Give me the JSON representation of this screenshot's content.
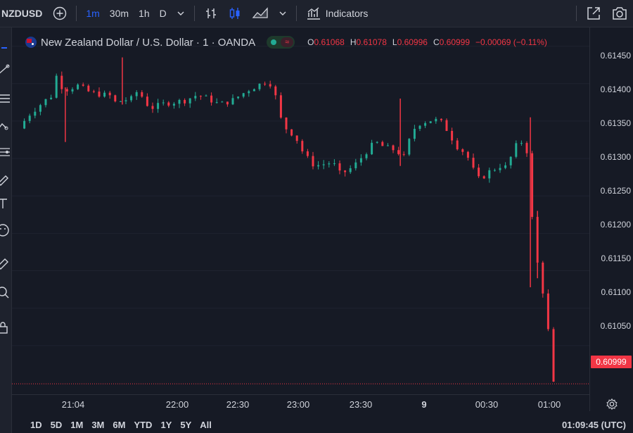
{
  "toolbar": {
    "symbol": "NZDUSD",
    "intervals": [
      "1m",
      "30m",
      "1h",
      "D"
    ],
    "active_interval": "1m",
    "indicators_label": "Indicators",
    "accent_color": "#2962ff"
  },
  "legend": {
    "title": "New Zealand Dollar / U.S. Dollar · 1 · OANDA",
    "ohlc": {
      "open_label": "O",
      "open": "0.61068",
      "high_label": "H",
      "high": "0.61078",
      "low_label": "L",
      "low": "0.60996",
      "close_label": "C",
      "close": "0.60999",
      "change": "−0.00069 (−0.11%)"
    }
  },
  "price_axis": {
    "labels": [
      "0.61450",
      "0.61400",
      "0.61350",
      "0.61300",
      "0.61250",
      "0.61200",
      "0.61150",
      "0.61100",
      "0.61050"
    ],
    "last_price": "0.60999"
  },
  "time_axis": {
    "labels": [
      "21:04",
      "22:00",
      "22:30",
      "23:00",
      "23:30",
      "9",
      "00:30",
      "01:00"
    ]
  },
  "bottom_bar": {
    "ranges": [
      "1D",
      "5D",
      "1M",
      "3M",
      "6M",
      "YTD",
      "1Y",
      "5Y",
      "All"
    ],
    "clock": "01:09:45 (UTC)"
  },
  "chart_data": {
    "type": "candlestick",
    "up_color": "#22ab94",
    "down_color": "#f23645",
    "ylim": [
      0.60985,
      0.61475
    ],
    "close_path": [
      [
        0,
        0.6134
      ],
      [
        10,
        0.61357
      ],
      [
        20,
        0.61368
      ],
      [
        30,
        0.61378
      ],
      [
        38,
        0.61385
      ],
      [
        42,
        0.6141
      ],
      [
        45,
        0.61398
      ],
      [
        55,
        0.61392
      ],
      [
        65,
        0.61398
      ],
      [
        80,
        0.61388
      ],
      [
        95,
        0.61385
      ],
      [
        105,
        0.61383
      ],
      [
        108,
        0.61375
      ],
      [
        118,
        0.61378
      ],
      [
        128,
        0.6138
      ],
      [
        135,
        0.61395
      ],
      [
        140,
        0.61375
      ],
      [
        150,
        0.61368
      ],
      [
        165,
        0.61374
      ],
      [
        185,
        0.61377
      ],
      [
        200,
        0.61385
      ],
      [
        212,
        0.6138
      ],
      [
        225,
        0.61372
      ],
      [
        240,
        0.61378
      ],
      [
        258,
        0.61392
      ],
      [
        272,
        0.614
      ],
      [
        280,
        0.61405
      ],
      [
        287,
        0.61388
      ],
      [
        293,
        0.61355
      ],
      [
        300,
        0.6134
      ],
      [
        310,
        0.6133
      ],
      [
        320,
        0.61305
      ],
      [
        332,
        0.6129
      ],
      [
        340,
        0.61292
      ],
      [
        352,
        0.61295
      ],
      [
        360,
        0.6128
      ],
      [
        368,
        0.61283
      ],
      [
        376,
        0.6129
      ],
      [
        382,
        0.61298
      ],
      [
        392,
        0.61312
      ],
      [
        400,
        0.61322
      ],
      [
        410,
        0.61315
      ],
      [
        420,
        0.61312
      ],
      [
        426,
        0.61308
      ],
      [
        432,
        0.61302
      ],
      [
        437,
        0.6132
      ],
      [
        442,
        0.61338
      ],
      [
        450,
        0.61347
      ],
      [
        458,
        0.6135
      ],
      [
        466,
        0.61352
      ],
      [
        474,
        0.61348
      ],
      [
        482,
        0.61336
      ],
      [
        490,
        0.61318
      ],
      [
        498,
        0.6131
      ],
      [
        506,
        0.61298
      ],
      [
        512,
        0.61278
      ],
      [
        518,
        0.6127
      ],
      [
        524,
        0.6128
      ],
      [
        532,
        0.61285
      ],
      [
        540,
        0.6129
      ],
      [
        548,
        0.61288
      ],
      [
        556,
        0.61315
      ],
      [
        564,
        0.61322
      ],
      [
        570,
        0.6131
      ],
      [
        574,
        0.6124
      ],
      [
        578,
        0.612
      ],
      [
        582,
        0.6116
      ],
      [
        586,
        0.6114
      ],
      [
        590,
        0.61105
      ],
      [
        594,
        0.6107
      ],
      [
        598,
        0.60999
      ]
    ],
    "wick_spikes": [
      [
        52,
        0.61395,
        0.61322
      ],
      [
        116,
        0.61435,
        0.61372
      ],
      [
        428,
        0.6138,
        0.6129
      ],
      [
        574,
        0.61355,
        0.61128
      ],
      [
        582,
        0.6123,
        0.6114
      ]
    ]
  }
}
